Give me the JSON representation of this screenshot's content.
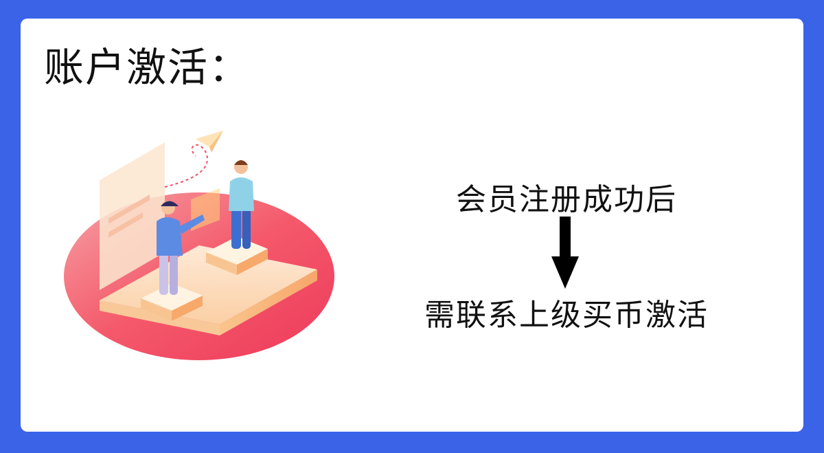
{
  "heading": "账户激活：",
  "steps": {
    "first": "会员注册成功后",
    "second": "需联系上级买币激活"
  },
  "colors": {
    "frame": "#3a63e8",
    "card": "#ffffff",
    "text": "#111111",
    "platform_red": "#f2445f",
    "platform_cream": "#fbe3c3"
  },
  "icons": {
    "flow": "down-arrow-icon",
    "illustration": "isometric-team-illustration"
  }
}
